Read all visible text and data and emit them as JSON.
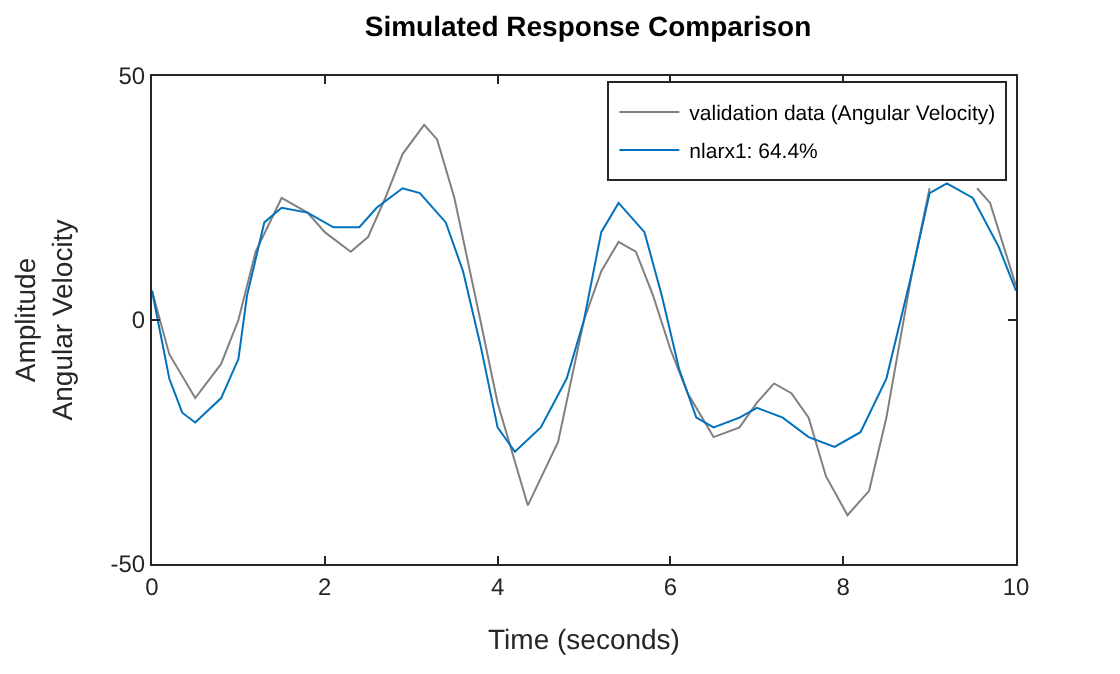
{
  "chart_data": {
    "type": "line",
    "title": "Simulated Response Comparison",
    "xlabel": "Time (seconds)",
    "ylabel": "Amplitude\nAngular Velocity",
    "xlim": [
      0,
      10
    ],
    "ylim": [
      -50,
      50
    ],
    "xticks": [
      0,
      2,
      4,
      6,
      8,
      10
    ],
    "yticks": [
      -50,
      0,
      50
    ],
    "legend": "top right",
    "marker": "none",
    "line_style": "solid",
    "series": [
      {
        "name": "validation data (Angular Velocity)",
        "color": "#808080",
        "x": [
          0,
          0.2,
          0.5,
          0.8,
          1.0,
          1.2,
          1.5,
          1.8,
          2.0,
          2.3,
          2.5,
          2.7,
          2.9,
          3.15,
          3.3,
          3.5,
          3.8,
          4.0,
          4.35,
          4.7,
          5.0,
          5.2,
          5.4,
          5.6,
          5.8,
          6.0,
          6.2,
          6.5,
          6.8,
          7.0,
          7.2,
          7.4,
          7.6,
          7.8,
          8.05,
          8.3,
          8.5,
          8.8,
          9.0,
          9.25,
          9.55,
          9.7,
          10
        ],
        "values": [
          6,
          -7,
          -16,
          -9,
          0,
          14,
          25,
          22,
          18,
          14,
          17,
          25,
          34,
          40,
          37,
          25,
          0,
          -17,
          -38,
          -25,
          0,
          10,
          16,
          14,
          5,
          -6,
          -15,
          -24,
          -22,
          -17,
          -13,
          -15,
          -20,
          -32,
          -40,
          -35,
          -20,
          10,
          27,
          null,
          27,
          24,
          7
        ]
      },
      {
        "name": "nlarx1: 64.4%",
        "color": "#0072bd",
        "x": [
          0,
          0.2,
          0.35,
          0.5,
          0.8,
          1.0,
          1.1,
          1.3,
          1.5,
          1.8,
          2.1,
          2.4,
          2.6,
          2.9,
          3.1,
          3.4,
          3.6,
          3.8,
          4.0,
          4.2,
          4.5,
          4.8,
          5.0,
          5.2,
          5.4,
          5.7,
          5.9,
          6.1,
          6.3,
          6.5,
          6.8,
          7.0,
          7.3,
          7.6,
          7.9,
          8.2,
          8.5,
          8.8,
          9.0,
          9.2,
          9.5,
          9.8,
          10
        ],
        "values": [
          6,
          -12,
          -19,
          -21,
          -16,
          -8,
          5,
          20,
          23,
          22,
          19,
          19,
          23,
          27,
          26,
          20,
          10,
          -5,
          -22,
          -27,
          -22,
          -12,
          0,
          18,
          24,
          18,
          5,
          -10,
          -20,
          -22,
          -20,
          -18,
          -20,
          -24,
          -26,
          -23,
          -12,
          10,
          26,
          28,
          25,
          15,
          6
        ]
      }
    ]
  }
}
